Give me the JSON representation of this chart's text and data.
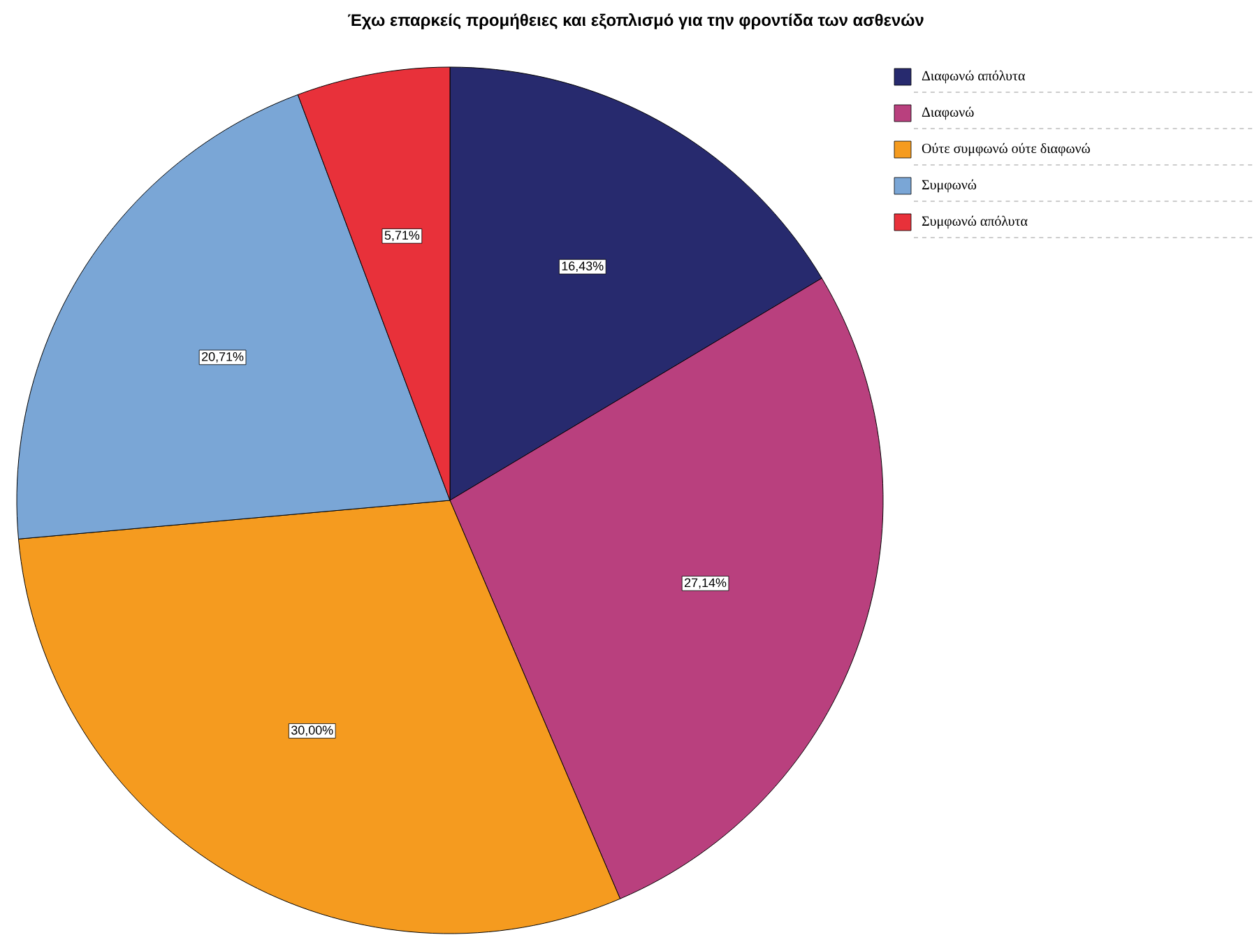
{
  "chart_data": {
    "type": "pie",
    "title": "Έχω επαρκείς προμήθειες και εξοπλισμό για την φροντίδα των ασθενών",
    "categories": [
      "Διαφωνώ απόλυτα",
      "Διαφωνώ",
      "Ούτε συμφωνώ ούτε διαφωνώ",
      "Συμφωνώ",
      "Συμφωνώ απόλυτα"
    ],
    "values": [
      16.43,
      27.14,
      30.0,
      20.71,
      5.71
    ],
    "colors": [
      "#272a6e",
      "#b9407e",
      "#f59b1f",
      "#7aa6d6",
      "#e8313a"
    ],
    "value_labels": [
      "16,43%",
      "27,14%",
      "30,00%",
      "20,71%",
      "5,71%"
    ],
    "legend": "top right"
  }
}
